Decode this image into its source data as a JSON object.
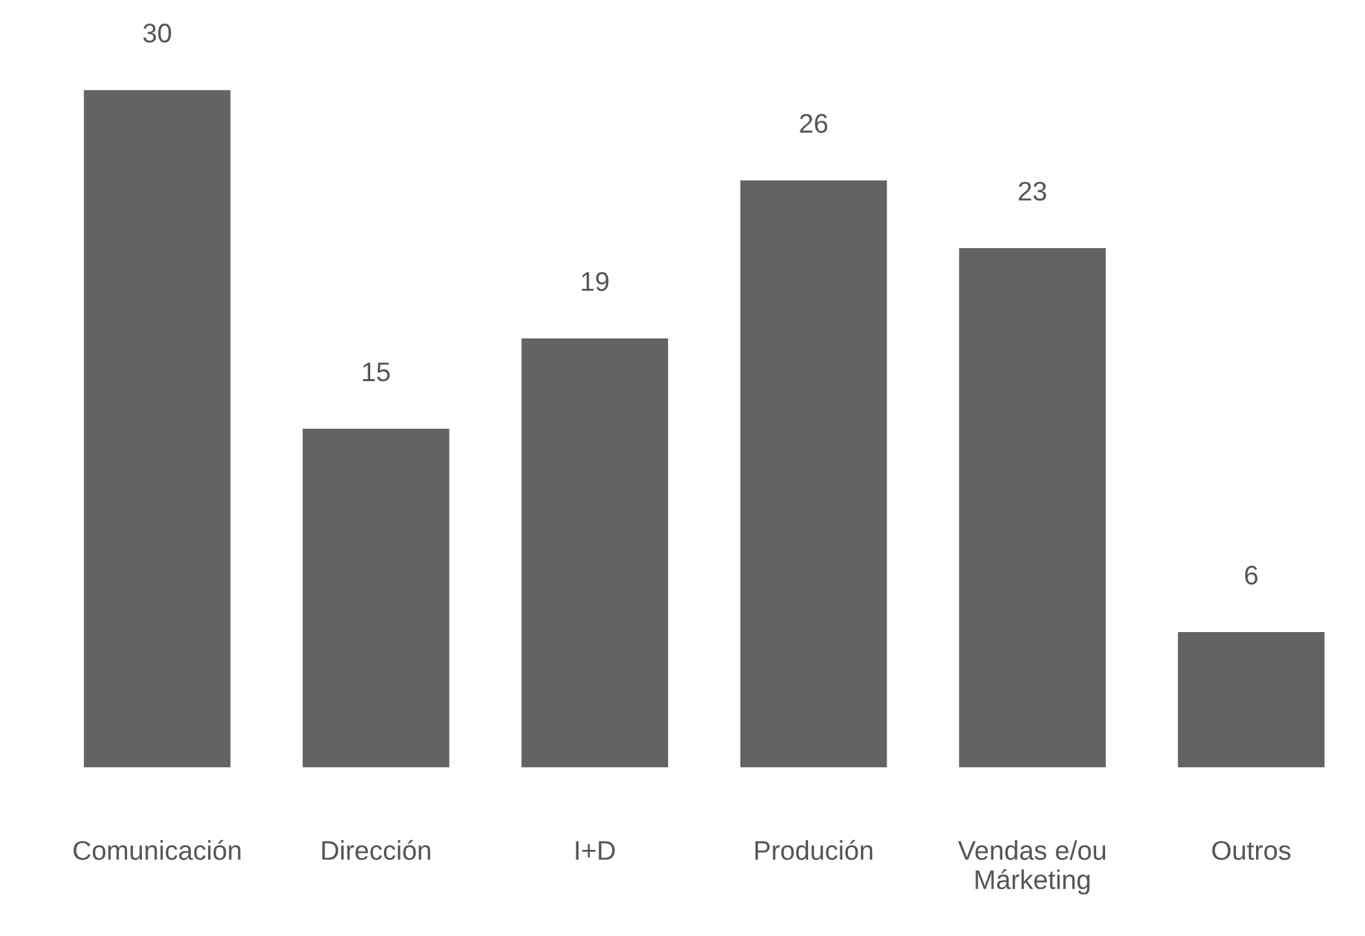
{
  "chart_data": {
    "type": "bar",
    "categories": [
      "Comunicación",
      "Dirección",
      "I+D",
      "Produción",
      "Vendas e/ou\nMárketing",
      "Outros"
    ],
    "values": [
      30,
      15,
      19,
      26,
      23,
      6
    ],
    "color": "#636363",
    "data_labels": true,
    "grid": false,
    "legend": false
  }
}
